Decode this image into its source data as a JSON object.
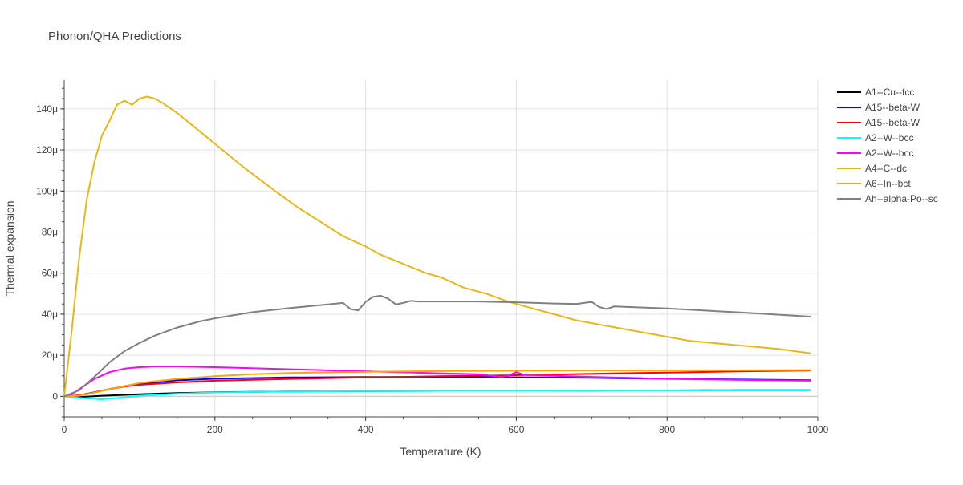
{
  "chart_data": {
    "type": "line",
    "title": "Phonon/QHA Predictions",
    "xlabel": "Temperature (K)",
    "ylabel": "Thermal expansion",
    "xlim": [
      0,
      1000
    ],
    "ylim": [
      -10,
      154
    ],
    "x_ticks": [
      {
        "value": 0,
        "label": "0"
      },
      {
        "value": 200,
        "label": "200"
      },
      {
        "value": 400,
        "label": "400"
      },
      {
        "value": 600,
        "label": "600"
      },
      {
        "value": 800,
        "label": "800"
      },
      {
        "value": 1000,
        "label": "1000"
      }
    ],
    "y_ticks": [
      {
        "value": 0,
        "label": "0"
      },
      {
        "value": 20,
        "label": "20μ"
      },
      {
        "value": 40,
        "label": "40μ"
      },
      {
        "value": 60,
        "label": "60μ"
      },
      {
        "value": 80,
        "label": "80μ"
      },
      {
        "value": 100,
        "label": "100μ"
      },
      {
        "value": 120,
        "label": "120μ"
      },
      {
        "value": 140,
        "label": "140μ"
      }
    ],
    "grid": true,
    "legend_position": "top-right",
    "series": [
      {
        "name": "A1--Cu--fcc",
        "color": "#000000",
        "x": [
          0,
          20,
          50,
          100,
          150,
          200,
          300,
          400,
          500,
          600,
          700,
          800,
          900,
          990
        ],
        "y": [
          0,
          -0.3,
          0.3,
          1.0,
          1.6,
          2.0,
          2.4,
          2.6,
          2.7,
          2.8,
          2.8,
          2.9,
          3.0,
          3.0
        ]
      },
      {
        "name": "A15--beta-W",
        "color": "#0000ff",
        "x": [
          0,
          20,
          40,
          60,
          80,
          100,
          150,
          200,
          300,
          400,
          500,
          600,
          700,
          800,
          900,
          990
        ],
        "y": [
          0,
          0.5,
          2.0,
          3.5,
          5.0,
          6.0,
          7.8,
          8.6,
          9.2,
          9.4,
          9.4,
          9.3,
          9.0,
          8.6,
          8.2,
          7.9
        ]
      },
      {
        "name": "A15--beta-W",
        "color": "#ff0000",
        "x": [
          0,
          20,
          40,
          60,
          80,
          100,
          150,
          200,
          300,
          400,
          500,
          600,
          700,
          800,
          900,
          990
        ],
        "y": [
          0,
          0.5,
          2.0,
          3.5,
          4.8,
          5.6,
          6.8,
          7.6,
          8.5,
          9.2,
          9.8,
          10.3,
          11.0,
          11.6,
          12.2,
          12.6
        ]
      },
      {
        "name": "A2--W--bcc",
        "color": "#00ffff",
        "x": [
          0,
          20,
          50,
          80,
          100,
          150,
          200,
          300,
          400,
          500,
          600,
          700,
          800,
          900,
          990
        ],
        "y": [
          0,
          -0.8,
          -1.4,
          -0.5,
          0.3,
          1.3,
          1.9,
          2.4,
          2.6,
          2.7,
          2.7,
          2.8,
          2.8,
          2.9,
          2.9
        ]
      },
      {
        "name": "A2--W--bcc",
        "color": "#ff00ff",
        "x": [
          0,
          10,
          20,
          30,
          40,
          60,
          80,
          100,
          120,
          150,
          200,
          300,
          400,
          500,
          550,
          580,
          590,
          600,
          610,
          650,
          700,
          750,
          800,
          900,
          990
        ],
        "y": [
          0,
          1.0,
          3.5,
          6.0,
          8.5,
          11.8,
          13.5,
          14.2,
          14.5,
          14.5,
          14.2,
          13.2,
          12.2,
          11.2,
          10.8,
          9.5,
          10.2,
          11.8,
          10.5,
          10.0,
          9.5,
          9.0,
          8.5,
          8.0,
          7.6
        ]
      },
      {
        "name": "A4--C--dc",
        "color": "#e6b817",
        "x": [
          0,
          10,
          20,
          30,
          40,
          50,
          60,
          70,
          80,
          90,
          100,
          110,
          120,
          130,
          150,
          170,
          200,
          240,
          280,
          310,
          340,
          370,
          400,
          420,
          440,
          460,
          480,
          500,
          530,
          560,
          590,
          620,
          650,
          680,
          710,
          740,
          770,
          800,
          830,
          860,
          890,
          920,
          950,
          990
        ],
        "y": [
          0,
          32,
          68,
          96,
          114,
          127,
          134,
          142,
          144,
          142,
          145,
          146,
          145,
          143,
          138,
          132,
          123,
          111,
          100,
          92,
          85,
          78,
          73,
          69,
          66,
          63,
          60,
          58,
          53,
          50,
          46,
          43,
          40,
          37,
          35,
          33,
          31,
          29,
          27,
          26,
          25,
          24,
          23,
          21
        ]
      },
      {
        "name": "A6--In--bct",
        "color": "#ffa500",
        "x": [
          0,
          20,
          40,
          60,
          80,
          100,
          150,
          200,
          250,
          300,
          400,
          500,
          600,
          700,
          800,
          900,
          990
        ],
        "y": [
          0,
          0.3,
          1.8,
          3.5,
          5.0,
          6.5,
          8.5,
          9.8,
          10.8,
          11.4,
          12.0,
          12.3,
          12.5,
          12.6,
          12.7,
          12.7,
          12.8
        ]
      },
      {
        "name": "Ah--alpha-Po--sc",
        "color": "#808080",
        "x": [
          0,
          20,
          40,
          60,
          80,
          100,
          120,
          150,
          180,
          200,
          250,
          300,
          350,
          370,
          380,
          390,
          400,
          410,
          420,
          430,
          440,
          450,
          460,
          470,
          500,
          550,
          600,
          650,
          680,
          700,
          710,
          720,
          730,
          750,
          800,
          900,
          990
        ],
        "y": [
          0,
          3.0,
          9.5,
          16.5,
          22.0,
          26.0,
          29.5,
          33.5,
          36.5,
          38.0,
          41.0,
          43.0,
          44.8,
          45.5,
          42.5,
          41.8,
          46.0,
          48.5,
          49.0,
          47.5,
          44.8,
          45.5,
          46.5,
          46.2,
          46.2,
          46.2,
          45.8,
          45.2,
          45.0,
          46.0,
          43.5,
          42.5,
          43.8,
          43.5,
          42.8,
          40.8,
          38.8
        ]
      }
    ]
  }
}
